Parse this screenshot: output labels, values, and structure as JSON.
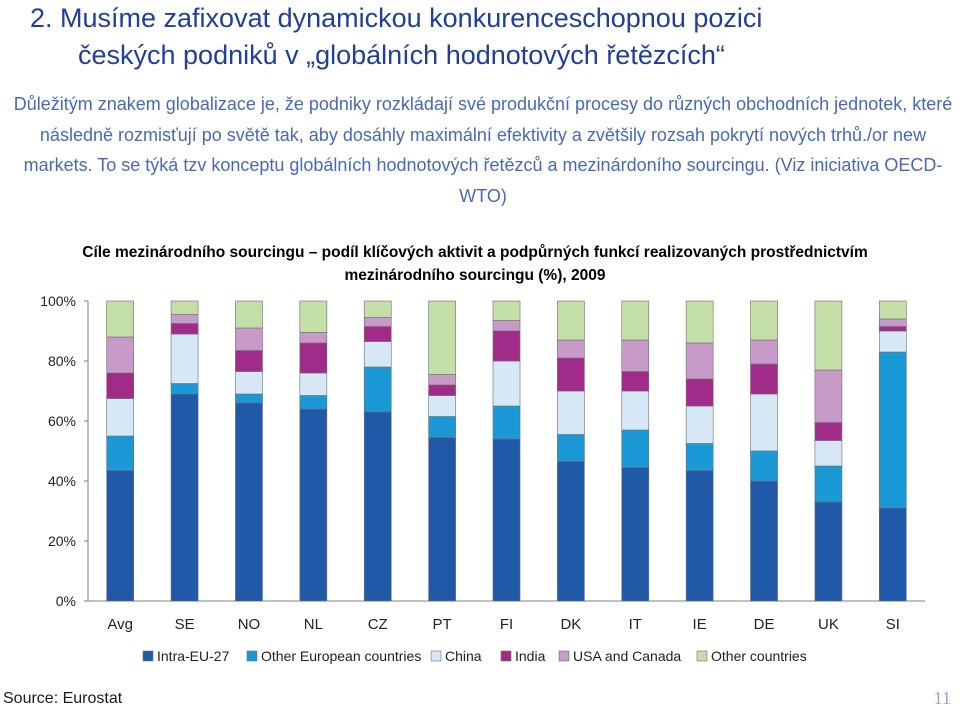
{
  "slide": {
    "title_line1": "2. Musíme zafixovat dynamickou konkurenceschopnou pozici",
    "title_line2": "českých podniků v „globálních hodnotových řetězcích“",
    "intro": "Důležitým znakem globalizace je, že podniky rozkládají své produkční procesy do různých obchodních jednotek, které následně rozmisťují po světě tak, aby dosáhly maximální efektivity a zvětšily rozsah pokrytí  nových trhů./or new markets. To se týká tzv konceptu globálních hodnotových řetězců a mezinárdoního sourcingu. (Viz iniciativa OECD-WTO)",
    "source": "Source: Eurostat",
    "page_number": "11"
  },
  "chart_data": {
    "type": "bar",
    "stacked": true,
    "title": "Cíle mezinárodního sourcingu – podíl klíčových aktivit a podpůrných funkcí realizovaných prostřednictvím mezinárodního sourcingu  (%), 2009",
    "categories": [
      "Avg",
      "SE",
      "NO",
      "NL",
      "CZ",
      "PT",
      "FI",
      "DK",
      "IT",
      "IE",
      "DE",
      "UK",
      "SI"
    ],
    "ylim": [
      0,
      100
    ],
    "yticks": [
      "0%",
      "20%",
      "40%",
      "60%",
      "80%",
      "100%"
    ],
    "grid": false,
    "legend_position": "bottom",
    "series": [
      {
        "name": "Intra-EU-27",
        "color": "#1f59a8",
        "values": [
          43.5,
          69,
          66,
          64,
          63,
          54.5,
          54,
          46.5,
          44.5,
          43.5,
          40,
          33,
          31
        ]
      },
      {
        "name": "Other European countries",
        "color": "#1a99d6",
        "values": [
          11.5,
          3.5,
          3,
          4.5,
          15,
          7,
          11,
          9,
          12.5,
          9,
          10,
          12,
          52
        ]
      },
      {
        "name": "China",
        "color": "#d6e7f6",
        "values": [
          12.5,
          16.5,
          7.5,
          7.5,
          8.5,
          7,
          15,
          14.5,
          13,
          12.5,
          19,
          8.5,
          7
        ]
      },
      {
        "name": "India",
        "color": "#a02b88",
        "values": [
          8.5,
          3.5,
          7,
          10,
          5,
          3.5,
          10,
          11,
          6.5,
          9,
          10,
          6,
          1.5
        ]
      },
      {
        "name": "USA and Canada",
        "color": "#c79ac9",
        "values": [
          12,
          3,
          7.5,
          3.5,
          3,
          3.5,
          3.5,
          6,
          10.5,
          12,
          8,
          17.5,
          2.5
        ]
      },
      {
        "name": "Other countries",
        "color": "#c3dea6",
        "values": [
          12,
          4.5,
          9,
          10.5,
          5.5,
          24.5,
          6.5,
          13,
          13,
          14,
          13,
          23,
          6
        ]
      }
    ]
  }
}
